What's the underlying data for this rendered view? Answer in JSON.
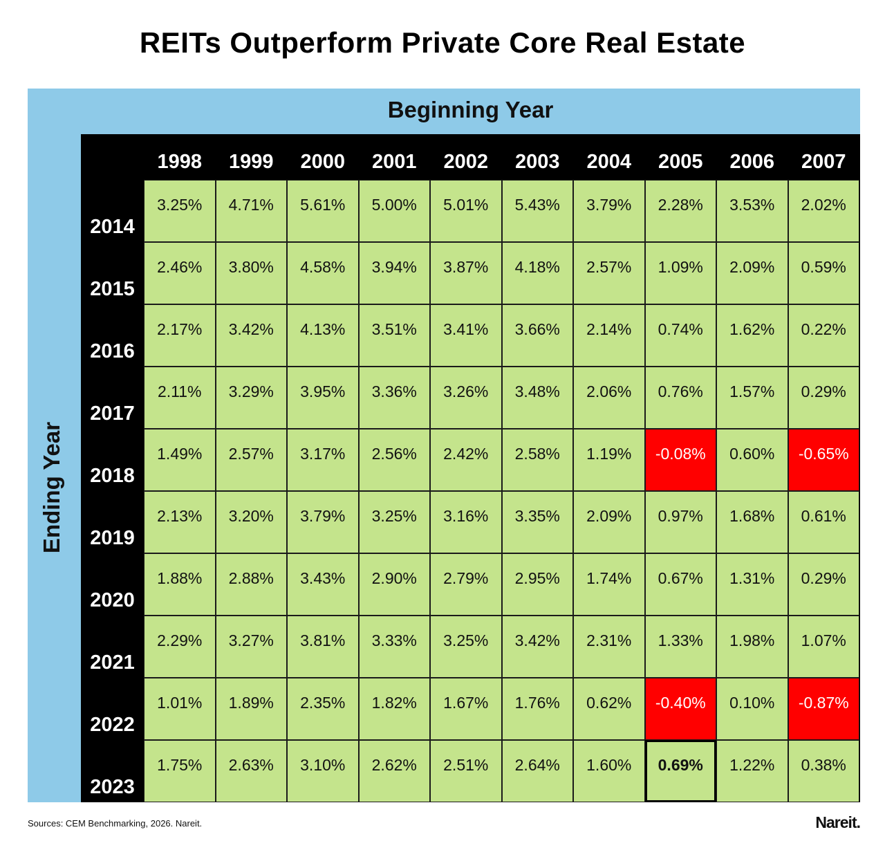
{
  "chart_data": {
    "type": "heatmap",
    "title": "REITs Outperform Private Core Real Estate",
    "xlabel": "Beginning Year",
    "ylabel": "Ending Year",
    "columns": [
      "1998",
      "1999",
      "2000",
      "2001",
      "2002",
      "2003",
      "2004",
      "2005",
      "2006",
      "2007"
    ],
    "rows": [
      "2014",
      "2015",
      "2016",
      "2017",
      "2018",
      "2019",
      "2020",
      "2021",
      "2022",
      "2023"
    ],
    "values": [
      [
        "3.25%",
        "4.71%",
        "5.61%",
        "5.00%",
        "5.01%",
        "5.43%",
        "3.79%",
        "2.28%",
        "3.53%",
        "2.02%"
      ],
      [
        "2.46%",
        "3.80%",
        "4.58%",
        "3.94%",
        "3.87%",
        "4.18%",
        "2.57%",
        "1.09%",
        "2.09%",
        "0.59%"
      ],
      [
        "2.17%",
        "3.42%",
        "4.13%",
        "3.51%",
        "3.41%",
        "3.66%",
        "2.14%",
        "0.74%",
        "1.62%",
        "0.22%"
      ],
      [
        "2.11%",
        "3.29%",
        "3.95%",
        "3.36%",
        "3.26%",
        "3.48%",
        "2.06%",
        "0.76%",
        "1.57%",
        "0.29%"
      ],
      [
        "1.49%",
        "2.57%",
        "3.17%",
        "2.56%",
        "2.42%",
        "2.58%",
        "1.19%",
        "-0.08%",
        "0.60%",
        "-0.65%"
      ],
      [
        "2.13%",
        "3.20%",
        "3.79%",
        "3.25%",
        "3.16%",
        "3.35%",
        "2.09%",
        "0.97%",
        "1.68%",
        "0.61%"
      ],
      [
        "1.88%",
        "2.88%",
        "3.43%",
        "2.90%",
        "2.79%",
        "2.95%",
        "1.74%",
        "0.67%",
        "1.31%",
        "0.29%"
      ],
      [
        "2.29%",
        "3.27%",
        "3.81%",
        "3.33%",
        "3.25%",
        "3.42%",
        "2.31%",
        "1.33%",
        "1.98%",
        "1.07%"
      ],
      [
        "1.01%",
        "1.89%",
        "2.35%",
        "1.82%",
        "1.67%",
        "1.76%",
        "0.62%",
        "-0.40%",
        "0.10%",
        "-0.87%"
      ],
      [
        "1.75%",
        "2.63%",
        "3.10%",
        "2.62%",
        "2.51%",
        "2.64%",
        "1.60%",
        "0.69%",
        "1.22%",
        "0.38%"
      ]
    ],
    "highlighted_cell": {
      "row": "2023",
      "column": "2005"
    },
    "colors": {
      "positive": "#c4e48c",
      "negative": "#ff0000",
      "panel": "#8ecae8",
      "header": "#000000"
    }
  },
  "footer": {
    "source": "Sources: CEM Benchmarking, 2026. Nareit.",
    "logo": "Nareit."
  }
}
